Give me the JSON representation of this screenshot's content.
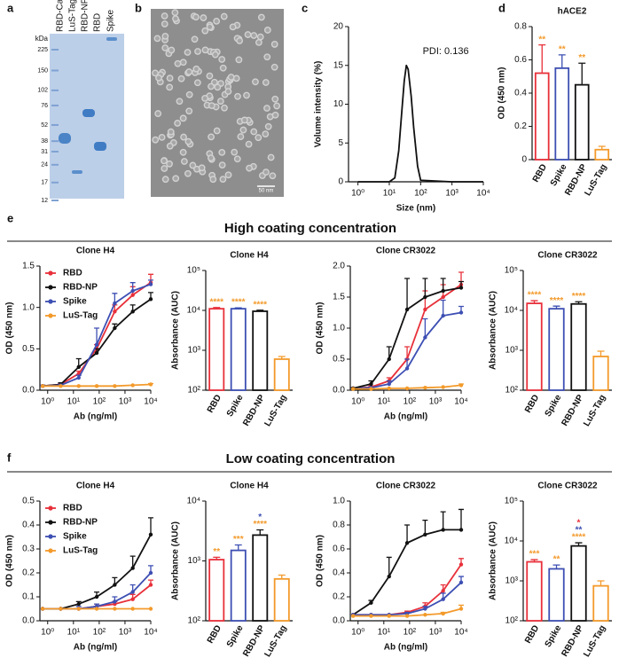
{
  "panels": [
    "a",
    "b",
    "c",
    "d",
    "e",
    "f"
  ],
  "sections": [
    "High coating concentration",
    "Low coating concentration"
  ],
  "gel": {
    "unit": "kDa",
    "markers": [
      225,
      150,
      102,
      76,
      52,
      38,
      31,
      24,
      17,
      12
    ],
    "lanes": [
      "RBD-Catch",
      "LuS-Tag",
      "RBD-NP",
      "RBD",
      "Spike"
    ]
  },
  "micrograph": {
    "scale_bar": "50 nm"
  },
  "chart_data": [
    {
      "type": "line",
      "xlabel": "Size (nm)",
      "ylabel": "Volume intensity (%)",
      "annotation": "PDI: 0.136",
      "color": "#111111",
      "markers": false,
      "x": [
        1,
        10,
        15,
        20,
        25,
        30,
        35,
        40,
        50,
        60,
        80,
        100,
        1000,
        10000
      ],
      "values": [
        0,
        0,
        0.5,
        4,
        9,
        13,
        15,
        14.5,
        11,
        7,
        2,
        0.2,
        0,
        0
      ],
      "xscale": "log",
      "xlim": [
        0.5,
        10000
      ],
      "xticks": [
        {
          "value": 1,
          "label": "10⁰"
        },
        {
          "value": 10,
          "label": "10¹"
        },
        {
          "value": 100,
          "label": "10²"
        },
        {
          "value": 1000,
          "label": "10³"
        },
        {
          "value": 10000,
          "label": "10⁴"
        }
      ],
      "ylim": [
        0,
        20
      ],
      "yticks": [
        0,
        5,
        10,
        15,
        20
      ]
    },
    {
      "type": "bar",
      "title": "hACE2",
      "ylabel": "OD (450 nm)",
      "categories": [
        "RBD",
        "Spike",
        "RBD-NP",
        "LuS-Tag"
      ],
      "values": [
        0.52,
        0.55,
        0.45,
        0.06
      ],
      "errors": [
        0.17,
        0.08,
        0.13,
        0.02
      ],
      "colors": [
        "#e8303a",
        "#3d4fb3",
        "#111111",
        "#f39a2b"
      ],
      "annotations": [
        [
          {
            "text": "**",
            "color": "#f39a2b"
          }
        ],
        [
          {
            "text": "**",
            "color": "#f39a2b"
          }
        ],
        [
          {
            "text": "**",
            "color": "#f39a2b"
          }
        ],
        []
      ],
      "ylim": [
        0,
        0.8
      ],
      "yticks": [
        0,
        0.2,
        0.4,
        0.6,
        0.8
      ]
    },
    {
      "type": "line",
      "title": "Clone H4",
      "xlabel": "Ab (ng/ml)",
      "ylabel": "OD (450 nm)",
      "legend": "upper left",
      "markers": true,
      "x": [
        0.64,
        3.2,
        16,
        80,
        400,
        2000,
        10000
      ],
      "xscale": "log",
      "xlim": [
        0.5,
        10000
      ],
      "xticks": [
        {
          "value": 1,
          "label": "10⁰"
        },
        {
          "value": 10,
          "label": "10¹"
        },
        {
          "value": 100,
          "label": "10²"
        },
        {
          "value": 1000,
          "label": "10³"
        },
        {
          "value": 10000,
          "label": "10⁴"
        }
      ],
      "ylim": [
        0,
        1.5
      ],
      "yticks": [
        {
          "value": 0,
          "label": "0.0"
        },
        0.5,
        {
          "value": 1,
          "label": "1.0"
        },
        1.5
      ],
      "series": [
        {
          "name": "RBD",
          "color": "#e8303a",
          "values": [
            0.05,
            0.07,
            0.2,
            0.5,
            0.95,
            1.15,
            1.3
          ],
          "errors": [
            0.01,
            0.01,
            0.03,
            0.05,
            0.08,
            0.1,
            0.1
          ]
        },
        {
          "name": "RBD-NP",
          "color": "#111111",
          "values": [
            0.05,
            0.07,
            0.28,
            0.45,
            0.75,
            0.95,
            1.1
          ],
          "errors": [
            0.01,
            0.02,
            0.1,
            0.05,
            0.05,
            0.08,
            0.08
          ]
        },
        {
          "name": "Spike",
          "color": "#3d4fb3",
          "values": [
            0.05,
            0.06,
            0.15,
            0.55,
            1.05,
            1.2,
            1.28
          ],
          "errors": [
            0.01,
            0.01,
            0.03,
            0.2,
            0.12,
            0.1,
            0.05
          ]
        },
        {
          "name": "LuS-Tag",
          "color": "#f39a2b",
          "values": [
            0.05,
            0.05,
            0.05,
            0.05,
            0.05,
            0.06,
            0.07
          ],
          "errors": [
            0,
            0,
            0,
            0,
            0,
            0,
            0.01
          ]
        }
      ]
    },
    {
      "type": "bar",
      "title": "Clone H4",
      "ylabel": "Absorbance (AUC)",
      "yscale": "log",
      "categories": [
        "RBD",
        "Spike",
        "RBD-NP",
        "LuS-Tag"
      ],
      "values": [
        11000,
        11000,
        9500,
        600
      ],
      "errors": [
        800,
        600,
        600,
        100
      ],
      "colors": [
        "#e8303a",
        "#3d4fb3",
        "#111111",
        "#f39a2b"
      ],
      "annotations": [
        [
          {
            "text": "****",
            "color": "#f39a2b"
          }
        ],
        [
          {
            "text": "****",
            "color": "#f39a2b"
          }
        ],
        [
          {
            "text": "****",
            "color": "#f39a2b"
          }
        ],
        []
      ],
      "ylim": [
        100,
        100000
      ],
      "yticks": [
        {
          "value": 100,
          "label": "10²"
        },
        {
          "value": 1000,
          "label": "10³"
        },
        {
          "value": 10000,
          "label": "10⁴"
        },
        {
          "value": 100000,
          "label": "10⁵"
        }
      ]
    },
    {
      "type": "line",
      "title": "Clone CR3022",
      "xlabel": "Ab (ng/ml)",
      "ylabel": "OD (450 nm)",
      "markers": true,
      "x": [
        0.64,
        3.2,
        16,
        80,
        400,
        2000,
        10000
      ],
      "xscale": "log",
      "xlim": [
        0.5,
        10000
      ],
      "xticks": [
        {
          "value": 1,
          "label": "10⁰"
        },
        {
          "value": 10,
          "label": "10¹"
        },
        {
          "value": 100,
          "label": "10²"
        },
        {
          "value": 1000,
          "label": "10³"
        },
        {
          "value": 10000,
          "label": "10⁴"
        }
      ],
      "ylim": [
        0,
        2
      ],
      "yticks": [
        {
          "value": 0,
          "label": "0.0"
        },
        0.5,
        {
          "value": 1,
          "label": "1.0"
        },
        1.5,
        {
          "value": 2,
          "label": "2.0"
        }
      ],
      "series": [
        {
          "name": "RBD",
          "color": "#e8303a",
          "values": [
            0.03,
            0.05,
            0.15,
            0.5,
            1.3,
            1.5,
            1.7
          ],
          "errors": [
            0.01,
            0.02,
            0.05,
            0.2,
            0.3,
            0.2,
            0.2
          ]
        },
        {
          "name": "Spike",
          "color": "#3d4fb3",
          "values": [
            0.03,
            0.04,
            0.1,
            0.35,
            0.85,
            1.2,
            1.25
          ],
          "errors": [
            0.01,
            0.01,
            0.05,
            0.15,
            0.3,
            0.25,
            0.1
          ]
        },
        {
          "name": "RBD-NP",
          "color": "#111111",
          "values": [
            0.03,
            0.1,
            0.5,
            1.3,
            1.5,
            1.6,
            1.65
          ],
          "errors": [
            0.01,
            0.05,
            0.2,
            0.5,
            0.3,
            0.2,
            0.1
          ]
        },
        {
          "name": "LuS-Tag",
          "color": "#f39a2b",
          "values": [
            0.02,
            0.02,
            0.03,
            0.03,
            0.04,
            0.05,
            0.08
          ],
          "errors": [
            0,
            0,
            0,
            0,
            0,
            0,
            0.02
          ]
        }
      ]
    },
    {
      "type": "bar",
      "title": "Clone CR3022",
      "ylabel": "Absorbance (AUC)",
      "yscale": "log",
      "categories": [
        "RBD",
        "Spike",
        "RBD-NP",
        "LuS-Tag"
      ],
      "values": [
        15000,
        11000,
        14500,
        700
      ],
      "errors": [
        2500,
        1800,
        2000,
        250
      ],
      "colors": [
        "#e8303a",
        "#3d4fb3",
        "#111111",
        "#f39a2b"
      ],
      "annotations": [
        [
          {
            "text": "****",
            "color": "#f39a2b"
          }
        ],
        [
          {
            "text": "****",
            "color": "#f39a2b"
          }
        ],
        [
          {
            "text": "****",
            "color": "#f39a2b"
          }
        ],
        []
      ],
      "ylim": [
        100,
        100000
      ],
      "yticks": [
        {
          "value": 100,
          "label": "10²"
        },
        {
          "value": 1000,
          "label": "10³"
        },
        {
          "value": 10000,
          "label": "10⁴"
        },
        {
          "value": 100000,
          "label": "10⁵"
        }
      ]
    },
    {
      "type": "line",
      "title": "Clone H4",
      "xlabel": "Ab (ng/ml)",
      "ylabel": "OD (450 nm)",
      "legend": "upper left",
      "markers": true,
      "x": [
        0.64,
        3.2,
        16,
        80,
        400,
        2000,
        10000
      ],
      "xscale": "log",
      "xlim": [
        0.5,
        10000
      ],
      "xticks": [
        {
          "value": 1,
          "label": "10⁰"
        },
        {
          "value": 10,
          "label": "10¹"
        },
        {
          "value": 100,
          "label": "10²"
        },
        {
          "value": 1000,
          "label": "10³"
        },
        {
          "value": 10000,
          "label": "10⁴"
        }
      ],
      "ylim": [
        0,
        0.5
      ],
      "yticks": [
        {
          "value": 0,
          "label": "0.0"
        },
        0.1,
        0.2,
        0.3,
        0.4,
        0.5
      ],
      "series": [
        {
          "name": "RBD",
          "color": "#e8303a",
          "values": [
            0.05,
            0.05,
            0.05,
            0.06,
            0.07,
            0.09,
            0.15
          ],
          "errors": [
            0,
            0,
            0,
            0.01,
            0.01,
            0.02,
            0.02
          ]
        },
        {
          "name": "RBD-NP",
          "color": "#111111",
          "values": [
            0.05,
            0.05,
            0.07,
            0.1,
            0.15,
            0.22,
            0.36
          ],
          "errors": [
            0,
            0,
            0.01,
            0.02,
            0.03,
            0.05,
            0.07
          ]
        },
        {
          "name": "Spike",
          "color": "#3d4fb3",
          "values": [
            0.05,
            0.05,
            0.05,
            0.06,
            0.08,
            0.12,
            0.2
          ],
          "errors": [
            0,
            0,
            0.01,
            0.01,
            0.02,
            0.03,
            0.03
          ]
        },
        {
          "name": "LuS-Tag",
          "color": "#f39a2b",
          "values": [
            0.05,
            0.05,
            0.05,
            0.05,
            0.05,
            0.05,
            0.05
          ],
          "errors": [
            0,
            0,
            0,
            0,
            0,
            0,
            0
          ]
        }
      ]
    },
    {
      "type": "bar",
      "title": "Clone H4",
      "ylabel": "Absorbance (AUC)",
      "yscale": "log",
      "categories": [
        "RBD",
        "Spike",
        "RBD-NP",
        "LuS-Tag"
      ],
      "values": [
        1050,
        1500,
        2700,
        500
      ],
      "errors": [
        100,
        350,
        600,
        80
      ],
      "colors": [
        "#e8303a",
        "#3d4fb3",
        "#111111",
        "#f39a2b"
      ],
      "annotations": [
        [
          {
            "text": "**",
            "color": "#f39a2b"
          }
        ],
        [
          {
            "text": "***",
            "color": "#f39a2b"
          }
        ],
        [
          {
            "text": "*",
            "color": "#3d4fb3"
          },
          {
            "text": "****",
            "color": "#f39a2b"
          }
        ],
        []
      ],
      "ylim": [
        100,
        10000
      ],
      "yticks": [
        {
          "value": 100,
          "label": "10²"
        },
        {
          "value": 1000,
          "label": "10³"
        },
        {
          "value": 10000,
          "label": "10⁴"
        }
      ]
    },
    {
      "type": "line",
      "title": "Clone CR3022",
      "xlabel": "Ab (ng/ml)",
      "ylabel": "OD (450 nm)",
      "markers": true,
      "x": [
        0.64,
        3.2,
        16,
        80,
        400,
        2000,
        10000
      ],
      "xscale": "log",
      "xlim": [
        0.5,
        10000
      ],
      "xticks": [
        {
          "value": 1,
          "label": "10⁰"
        },
        {
          "value": 10,
          "label": "10¹"
        },
        {
          "value": 100,
          "label": "10²"
        },
        {
          "value": 1000,
          "label": "10³"
        },
        {
          "value": 10000,
          "label": "10⁴"
        }
      ],
      "ylim": [
        0,
        1
      ],
      "yticks": [
        {
          "value": 0,
          "label": "0.0"
        },
        0.2,
        0.4,
        0.6,
        0.8,
        {
          "value": 1,
          "label": "1.0"
        }
      ],
      "series": [
        {
          "name": "RBD-NP",
          "color": "#111111",
          "values": [
            0.05,
            0.15,
            0.37,
            0.65,
            0.72,
            0.76,
            0.76
          ],
          "errors": [
            0,
            0.02,
            0.16,
            0.15,
            0.12,
            0.15,
            0.17
          ]
        },
        {
          "name": "RBD",
          "color": "#e8303a",
          "values": [
            0.05,
            0.05,
            0.05,
            0.07,
            0.12,
            0.25,
            0.47
          ],
          "errors": [
            0,
            0,
            0,
            0.01,
            0.03,
            0.05,
            0.05
          ]
        },
        {
          "name": "Spike",
          "color": "#3d4fb3",
          "values": [
            0.05,
            0.05,
            0.05,
            0.06,
            0.1,
            0.18,
            0.32
          ],
          "errors": [
            0,
            0,
            0,
            0.01,
            0.02,
            0.05,
            0.05
          ]
        },
        {
          "name": "LuS-Tag",
          "color": "#f39a2b",
          "values": [
            0.04,
            0.04,
            0.04,
            0.04,
            0.05,
            0.06,
            0.1
          ],
          "errors": [
            0,
            0,
            0,
            0,
            0,
            0.01,
            0.03
          ]
        }
      ]
    },
    {
      "type": "bar",
      "title": "Clone CR3022",
      "ylabel": "Absorbance (AUC)",
      "yscale": "log",
      "categories": [
        "RBD",
        "Spike",
        "RBD-NP",
        "LuS-Tag"
      ],
      "values": [
        3000,
        2000,
        7500,
        750
      ],
      "errors": [
        400,
        500,
        1500,
        250
      ],
      "colors": [
        "#e8303a",
        "#3d4fb3",
        "#111111",
        "#f39a2b"
      ],
      "annotations": [
        [
          {
            "text": "***",
            "color": "#f39a2b"
          }
        ],
        [
          {
            "text": "**",
            "color": "#f39a2b"
          }
        ],
        [
          {
            "text": "*",
            "color": "#e8303a"
          },
          {
            "text": "**",
            "color": "#3d4fb3"
          },
          {
            "text": "****",
            "color": "#f39a2b"
          }
        ],
        []
      ],
      "ylim": [
        100,
        100000
      ],
      "yticks": [
        {
          "value": 100,
          "label": "10²"
        },
        {
          "value": 1000,
          "label": "10³"
        },
        {
          "value": 10000,
          "label": "10⁴"
        },
        {
          "value": 100000,
          "label": "10⁵"
        }
      ]
    }
  ]
}
